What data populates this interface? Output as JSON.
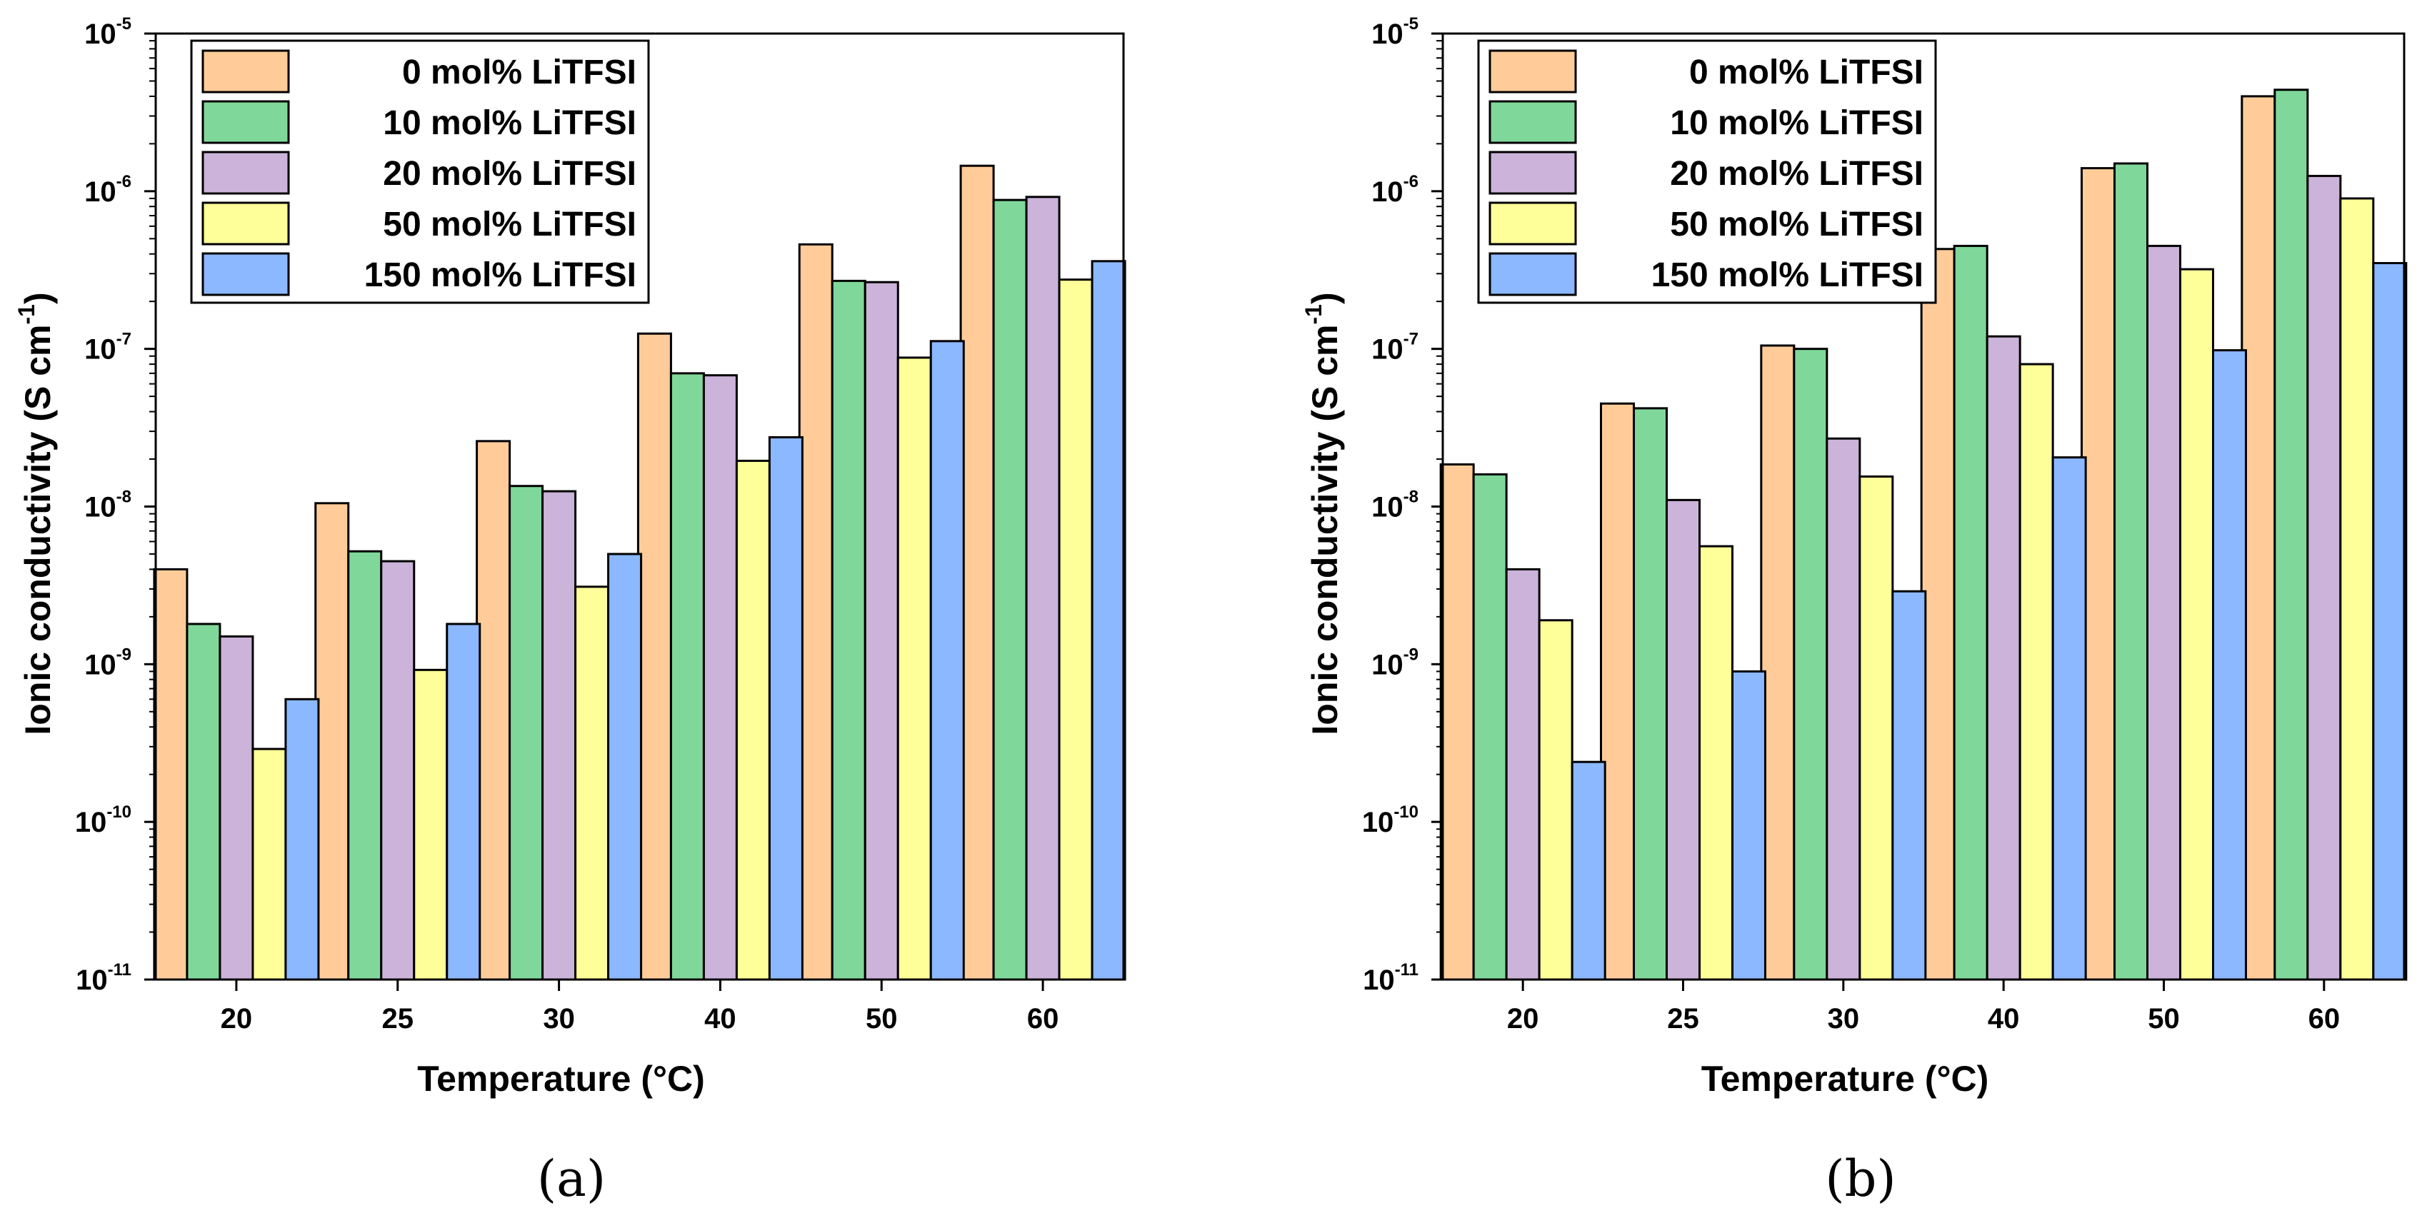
{
  "colors": {
    "0 mol% LiTFSI": "#FFCC99",
    "10 mol% LiTFSI": "#7FD89A",
    "20 mol% LiTFSI": "#CCB3D9",
    "50 mol% LiTFSI": "#FFFF99",
    "150 mol% LiTFSI": "#8BB8FF"
  },
  "chart_data": [
    {
      "type": "bar",
      "panel": "a",
      "caption": "(a)",
      "xlabel": "Temperature (°C)",
      "ylabel": "Ionic conductivity (S cm-1)",
      "ylabel_main": "Ionic conductivity (S cm",
      "ylabel_sup": "-1",
      "ylabel_close": ")",
      "yscale": "log",
      "ylim": [
        1e-11,
        1e-05
      ],
      "ytick_base": "10",
      "ytick_exponents": [
        "-11",
        "-10",
        "-9",
        "-8",
        "-7",
        "-6",
        "-5"
      ],
      "legend_position": "top-left",
      "categories": [
        "20",
        "25",
        "30",
        "40",
        "50",
        "60"
      ],
      "series": [
        {
          "name": "0 mol% LiTFSI",
          "values": [
            4e-09,
            1.05e-08,
            2.6e-08,
            1.25e-07,
            4.6e-07,
            1.45e-06
          ]
        },
        {
          "name": "10 mol% LiTFSI",
          "values": [
            1.8e-09,
            5.2e-09,
            1.35e-08,
            7e-08,
            2.7e-07,
            8.8e-07
          ]
        },
        {
          "name": "20 mol% LiTFSI",
          "values": [
            1.5e-09,
            4.5e-09,
            1.25e-08,
            6.8e-08,
            2.65e-07,
            9.2e-07
          ]
        },
        {
          "name": "50 mol% LiTFSI",
          "values": [
            2.9e-10,
            9.2e-10,
            3.1e-09,
            1.95e-08,
            8.8e-08,
            2.75e-07
          ]
        },
        {
          "name": "150 mol% LiTFSI",
          "values": [
            6e-10,
            1.8e-09,
            5e-09,
            2.75e-08,
            1.12e-07,
            3.6e-07
          ]
        }
      ]
    },
    {
      "type": "bar",
      "panel": "b",
      "caption": "(b)",
      "xlabel": "Temperature (°C)",
      "ylabel": "Ionic conductivity (S cm-1)",
      "ylabel_main": "Ionic conductivity (S cm",
      "ylabel_sup": "-1",
      "ylabel_close": ")",
      "yscale": "log",
      "ylim": [
        1e-11,
        1e-05
      ],
      "ytick_base": "10",
      "ytick_exponents": [
        "-11",
        "-10",
        "-9",
        "-8",
        "-7",
        "-6",
        "-5"
      ],
      "legend_position": "top-left",
      "categories": [
        "20",
        "25",
        "30",
        "40",
        "50",
        "60"
      ],
      "series": [
        {
          "name": "0 mol% LiTFSI",
          "values": [
            1.85e-08,
            4.5e-08,
            1.05e-07,
            4.3e-07,
            1.4e-06,
            4e-06
          ]
        },
        {
          "name": "10 mol% LiTFSI",
          "values": [
            1.6e-08,
            4.2e-08,
            1e-07,
            4.5e-07,
            1.5e-06,
            4.4e-06
          ]
        },
        {
          "name": "20 mol% LiTFSI",
          "values": [
            4e-09,
            1.1e-08,
            2.7e-08,
            1.2e-07,
            4.5e-07,
            1.25e-06
          ]
        },
        {
          "name": "50 mol% LiTFSI",
          "values": [
            1.9e-09,
            5.6e-09,
            1.55e-08,
            8e-08,
            3.2e-07,
            9e-07
          ]
        },
        {
          "name": "150 mol% LiTFSI",
          "values": [
            2.4e-10,
            9e-10,
            2.9e-09,
            2.05e-08,
            9.8e-08,
            3.5e-07
          ]
        }
      ]
    }
  ]
}
